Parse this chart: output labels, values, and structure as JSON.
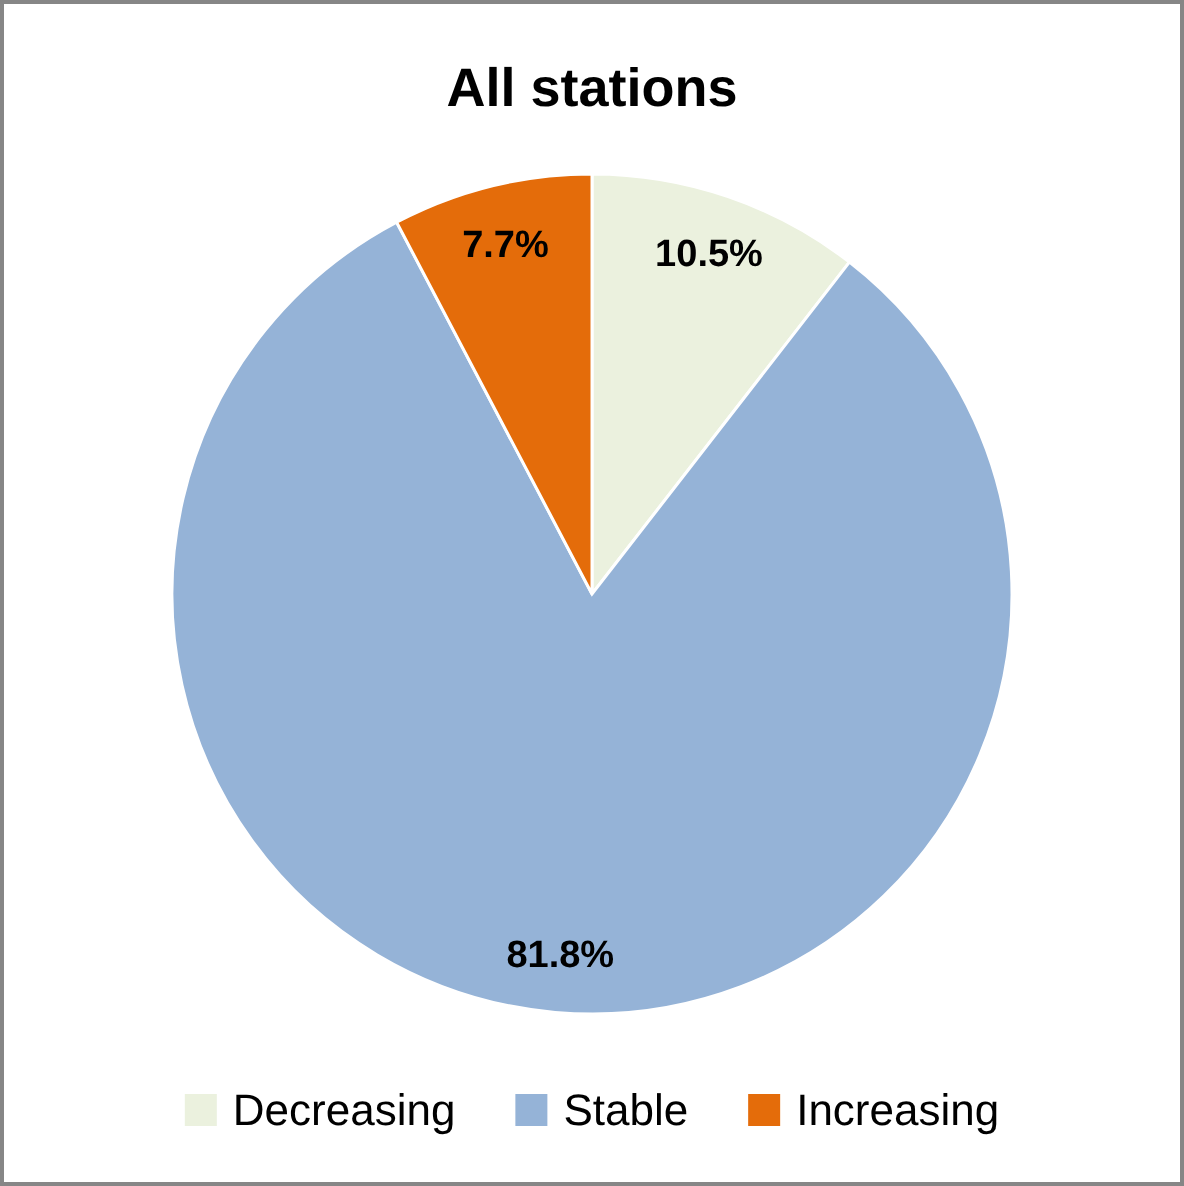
{
  "chart_data": {
    "type": "pie",
    "title": "All stations",
    "categories": [
      "Decreasing",
      "Stable",
      "Increasing"
    ],
    "values": [
      10.5,
      81.8,
      7.7
    ],
    "colors": [
      "#ebf1de",
      "#95b3d7",
      "#e46c0a"
    ],
    "value_labels": [
      "10.5%",
      "81.8%",
      "7.7%"
    ],
    "legend": "bottom"
  }
}
